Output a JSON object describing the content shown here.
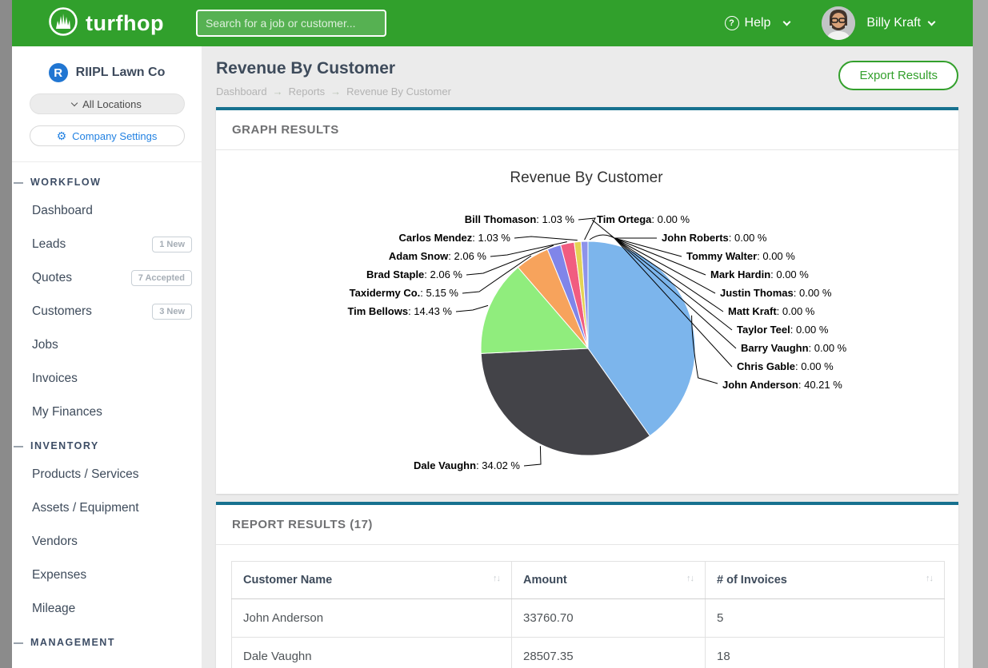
{
  "header": {
    "brand": "turfhop",
    "search_placeholder": "Search for a job or customer...",
    "help_label": "Help",
    "user_name": "Billy Kraft"
  },
  "sidebar": {
    "company_initial": "R",
    "company_name": "RIIPL Lawn Co",
    "location_selector_label": "All Locations",
    "company_settings_label": "Company Settings",
    "sections": [
      {
        "heading": "WORKFLOW",
        "items": [
          {
            "label": "Dashboard"
          },
          {
            "label": "Leads",
            "badge": "1 New"
          },
          {
            "label": "Quotes",
            "badge": "7 Accepted"
          },
          {
            "label": "Customers",
            "badge": "3 New"
          },
          {
            "label": "Jobs"
          },
          {
            "label": "Invoices"
          },
          {
            "label": "My Finances"
          }
        ]
      },
      {
        "heading": "INVENTORY",
        "items": [
          {
            "label": "Products / Services"
          },
          {
            "label": "Assets / Equipment"
          },
          {
            "label": "Vendors"
          },
          {
            "label": "Expenses"
          },
          {
            "label": "Mileage"
          }
        ]
      },
      {
        "heading": "MANAGEMENT",
        "items": []
      }
    ]
  },
  "page": {
    "title": "Revenue By Customer",
    "breadcrumb": [
      "Dashboard",
      "Reports",
      "Revenue By Customer"
    ],
    "breadcrumb_separator": "→",
    "export_button_label": "Export Results"
  },
  "graph_panel": {
    "heading": "GRAPH RESULTS"
  },
  "chart_data": {
    "type": "pie",
    "title": "Revenue By Customer",
    "legend_position": "none",
    "label_format": "{name}: {value} %",
    "points": [
      {
        "label": "John Anderson",
        "value": 40.21,
        "color": "#7cb5ec"
      },
      {
        "label": "Dale Vaughn",
        "value": 34.02,
        "color": "#434348"
      },
      {
        "label": "Tim Bellows",
        "value": 14.43,
        "color": "#90ed7d"
      },
      {
        "label": "Taxidermy Co.",
        "value": 5.15,
        "color": "#f7a35c"
      },
      {
        "label": "Brad Staple",
        "value": 2.06,
        "color": "#8085e9"
      },
      {
        "label": "Adam Snow",
        "value": 2.06,
        "color": "#f15c80"
      },
      {
        "label": "Carlos Mendez",
        "value": 1.03,
        "color": "#e4d354"
      },
      {
        "label": "Bill Thomason",
        "value": 1.03,
        "color": "#8d93ea"
      },
      {
        "label": "Tim Ortega",
        "value": 0.0,
        "color": null
      },
      {
        "label": "John Roberts",
        "value": 0.0,
        "color": null
      },
      {
        "label": "Tommy Walter",
        "value": 0.0,
        "color": null
      },
      {
        "label": "Mark Hardin",
        "value": 0.0,
        "color": null
      },
      {
        "label": "Justin Thomas",
        "value": 0.0,
        "color": null
      },
      {
        "label": "Matt Kraft",
        "value": 0.0,
        "color": null
      },
      {
        "label": "Taylor Teel",
        "value": 0.0,
        "color": null
      },
      {
        "label": "Barry Vaughn",
        "value": 0.0,
        "color": null
      },
      {
        "label": "Chris Gable",
        "value": 0.0,
        "color": null
      }
    ]
  },
  "report_panel": {
    "heading": "REPORT RESULTS (17)",
    "table": {
      "sort_icon_glyph": "↑↓",
      "columns": [
        "Customer Name",
        "Amount",
        "# of Invoices"
      ],
      "rows": [
        [
          "John Anderson",
          "33760.70",
          "5"
        ],
        [
          "Dale Vaughn",
          "28507.35",
          "18"
        ]
      ]
    }
  },
  "colors": {
    "brand_green": "#31a02c",
    "panel_accent_teal": "#17718f",
    "link_blue": "#2382e2",
    "company_logo_blue": "#2176d2"
  }
}
